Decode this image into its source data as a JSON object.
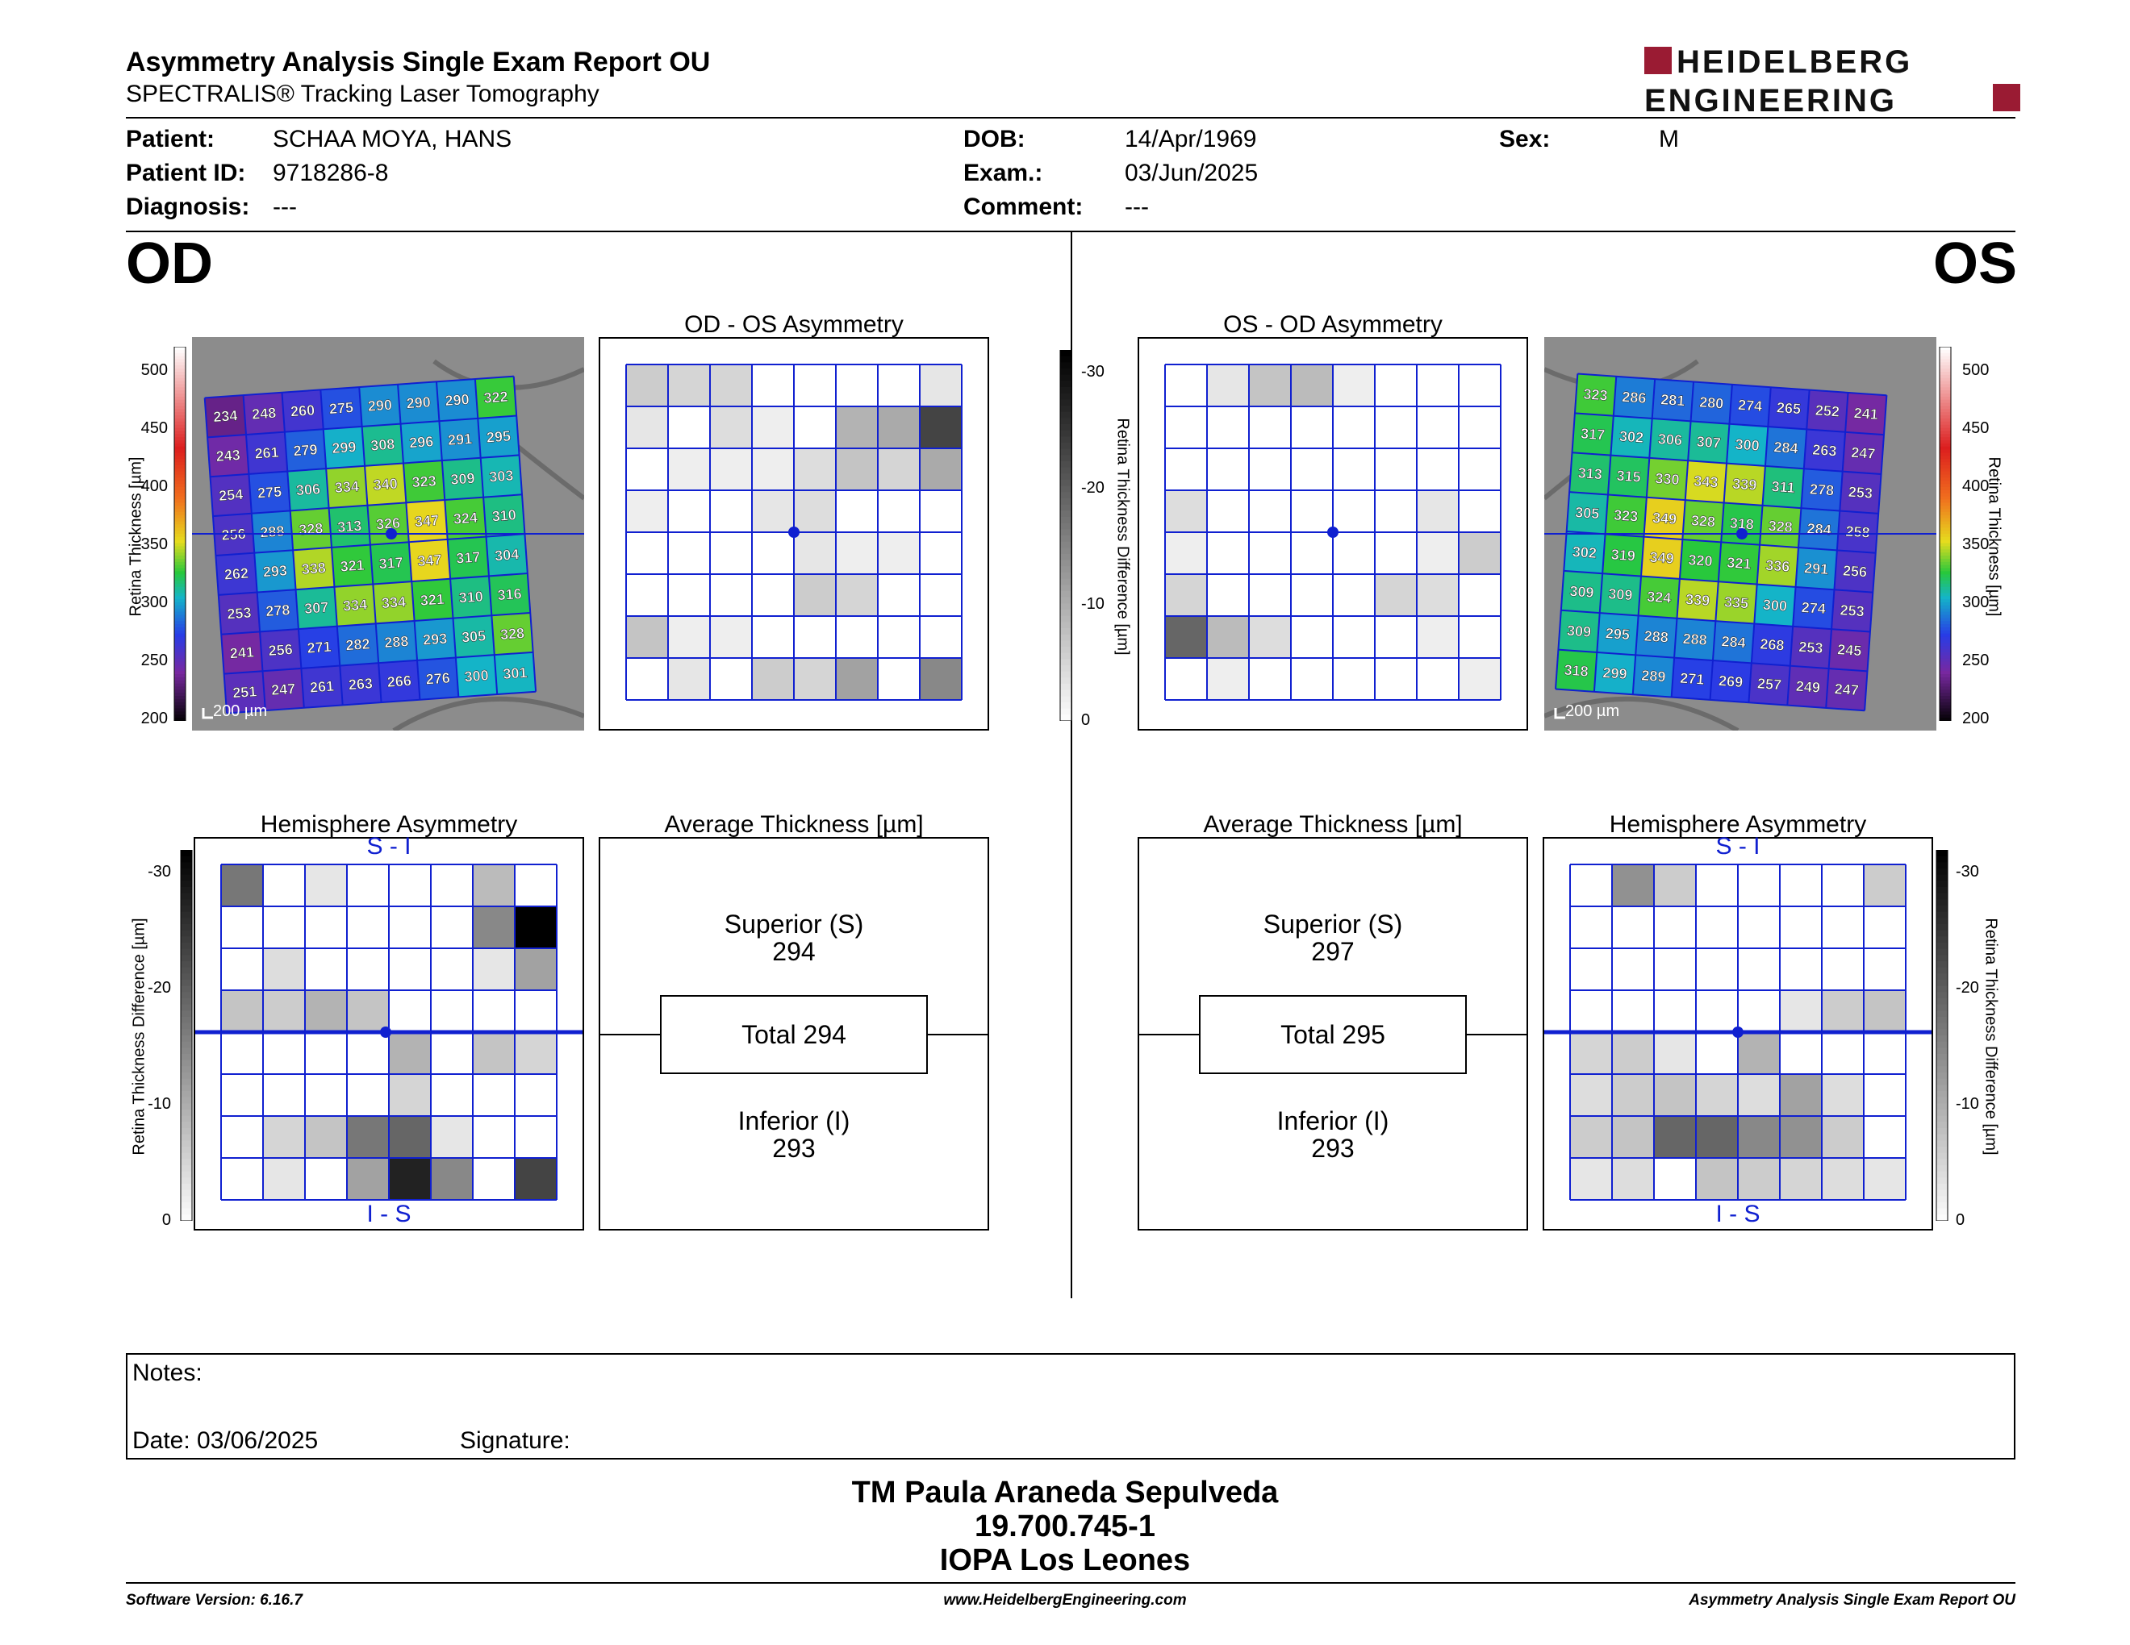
{
  "header": {
    "title": "Asymmetry Analysis Single Exam Report OU",
    "subtitle": "SPECTRALIS® Tracking Laser Tomography",
    "logo_line1": "HEIDELBERG",
    "logo_line2": "ENGINEERING"
  },
  "patient": {
    "patient_label": "Patient:",
    "patient_value": "SCHAA MOYA, HANS",
    "id_label": "Patient ID:",
    "id_value": "9718286-8",
    "diagnosis_label": "Diagnosis:",
    "diagnosis_value": "---",
    "dob_label": "DOB:",
    "dob_value": "14/Apr/1969",
    "exam_label": "Exam.:",
    "exam_value": "03/Jun/2025",
    "comment_label": "Comment:",
    "comment_value": "---",
    "sex_label": "Sex:",
    "sex_value": "M"
  },
  "od": {
    "eye": "OD",
    "asym_title": "OD - OS Asymmetry",
    "hemi_title": "Hemisphere Asymmetry",
    "avg_title": "Average Thickness [µm]",
    "superior_label": "Superior (S)",
    "superior_value": "294",
    "total": "Total 294",
    "inferior_label": "Inferior (I)",
    "inferior_value": "293",
    "scale_bar": "200 µm",
    "thickness_grid": [
      [
        234,
        248,
        260,
        275,
        290,
        290,
        290,
        322
      ],
      [
        243,
        261,
        279,
        299,
        308,
        296,
        291,
        295
      ],
      [
        254,
        275,
        306,
        334,
        340,
        323,
        309,
        303
      ],
      [
        256,
        288,
        328,
        313,
        326,
        347,
        324,
        310
      ],
      [
        262,
        293,
        338,
        321,
        317,
        347,
        317,
        304
      ],
      [
        253,
        278,
        307,
        334,
        334,
        321,
        310,
        316
      ],
      [
        241,
        256,
        271,
        282,
        288,
        293,
        305,
        328
      ],
      [
        251,
        247,
        261,
        263,
        266,
        276,
        300,
        301
      ]
    ],
    "asym_grid": [
      [
        6,
        5,
        5,
        0,
        0,
        0,
        0,
        3
      ],
      [
        3,
        0,
        4,
        2,
        0,
        9,
        10,
        22
      ],
      [
        0,
        2,
        2,
        2,
        4,
        7,
        5,
        10
      ],
      [
        2,
        0,
        0,
        3,
        4,
        0,
        0,
        0
      ],
      [
        0,
        0,
        0,
        0,
        3,
        2,
        2,
        0
      ],
      [
        0,
        0,
        0,
        0,
        6,
        5,
        0,
        0
      ],
      [
        7,
        2,
        2,
        0,
        0,
        0,
        0,
        0
      ],
      [
        0,
        3,
        0,
        6,
        5,
        11,
        0,
        14
      ]
    ],
    "hemi_grid": [
      [
        16,
        0,
        3,
        0,
        0,
        0,
        8,
        0
      ],
      [
        0,
        0,
        0,
        0,
        0,
        0,
        14,
        30
      ],
      [
        0,
        4,
        0,
        0,
        0,
        0,
        3,
        11
      ],
      [
        7,
        6,
        9,
        7,
        0,
        0,
        0,
        0
      ],
      [
        0,
        0,
        0,
        0,
        9,
        0,
        7,
        5
      ],
      [
        0,
        0,
        0,
        0,
        5,
        0,
        0,
        0
      ],
      [
        0,
        5,
        7,
        16,
        18,
        3,
        0,
        0
      ],
      [
        0,
        3,
        0,
        11,
        26,
        14,
        0,
        22
      ]
    ]
  },
  "os": {
    "eye": "OS",
    "asym_title": "OS - OD Asymmetry",
    "hemi_title": "Hemisphere Asymmetry",
    "avg_title": "Average Thickness [µm]",
    "superior_label": "Superior (S)",
    "superior_value": "297",
    "total": "Total 295",
    "inferior_label": "Inferior (I)",
    "inferior_value": "293",
    "scale_bar": "200 µm",
    "thickness_grid": [
      [
        323,
        286,
        281,
        280,
        274,
        265,
        252,
        241
      ],
      [
        317,
        302,
        306,
        307,
        300,
        284,
        263,
        247
      ],
      [
        313,
        315,
        330,
        343,
        339,
        311,
        278,
        253
      ],
      [
        305,
        323,
        349,
        328,
        318,
        328,
        284,
        258
      ],
      [
        302,
        319,
        349,
        320,
        321,
        336,
        291,
        256
      ],
      [
        309,
        309,
        324,
        339,
        335,
        300,
        274,
        253
      ],
      [
        309,
        295,
        288,
        288,
        284,
        268,
        253,
        245
      ],
      [
        318,
        299,
        289,
        271,
        269,
        257,
        249,
        247
      ]
    ],
    "asym_grid": [
      [
        0,
        3,
        7,
        8,
        2,
        0,
        0,
        0
      ],
      [
        0,
        0,
        0,
        0,
        0,
        0,
        0,
        0
      ],
      [
        0,
        0,
        0,
        0,
        0,
        0,
        0,
        0
      ],
      [
        4,
        0,
        0,
        0,
        0,
        0,
        3,
        0
      ],
      [
        2,
        0,
        0,
        0,
        0,
        0,
        2,
        6
      ],
      [
        5,
        0,
        0,
        0,
        0,
        5,
        4,
        0
      ],
      [
        18,
        8,
        4,
        0,
        0,
        0,
        2,
        0
      ],
      [
        0,
        2,
        0,
        0,
        0,
        0,
        0,
        2
      ]
    ],
    "hemi_grid": [
      [
        0,
        13,
        6,
        0,
        0,
        0,
        0,
        6
      ],
      [
        0,
        0,
        0,
        0,
        0,
        0,
        0,
        0
      ],
      [
        0,
        0,
        0,
        0,
        0,
        0,
        0,
        0
      ],
      [
        0,
        0,
        0,
        0,
        0,
        3,
        6,
        7
      ],
      [
        5,
        6,
        3,
        0,
        9,
        0,
        0,
        0
      ],
      [
        4,
        6,
        7,
        5,
        4,
        11,
        4,
        0
      ],
      [
        6,
        7,
        18,
        18,
        14,
        13,
        6,
        0
      ],
      [
        3,
        4,
        0,
        7,
        6,
        5,
        4,
        3
      ]
    ]
  },
  "scales": {
    "thickness_axis": "Retina Thickness [µm]",
    "thickness_ticks": [
      "500",
      "450",
      "400",
      "350",
      "300",
      "250",
      "200"
    ],
    "diff_axis": "Retina Thickness Difference [µm]",
    "diff_ticks": [
      "-30",
      "-20",
      "-10",
      "0"
    ]
  },
  "hemi_labels": {
    "top": "S - I",
    "bottom": "I - S"
  },
  "notes": {
    "notes_label": "Notes:",
    "date_label": "Date: 03/06/2025",
    "signature_label": "Signature:"
  },
  "signature": {
    "line1": "TM Paula Araneda Sepulveda",
    "line2": "19.700.745-1",
    "line3": "IOPA Los Leones"
  },
  "footer": {
    "software": "Software Version: 6.16.7",
    "website": "www.HeidelbergEngineering.com",
    "report": "Asymmetry Analysis Single Exam Report OU"
  }
}
